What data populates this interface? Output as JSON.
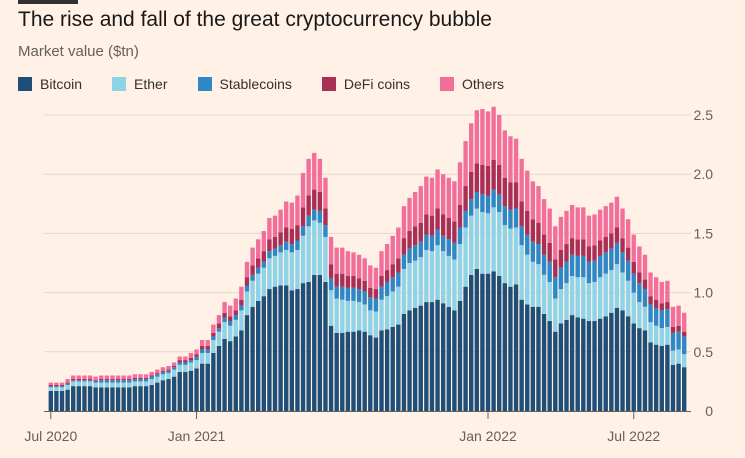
{
  "title": "The rise and fall of the great cryptocurrency bubble",
  "subtitle": "Market value ($tn)",
  "chart_data": {
    "type": "bar",
    "stacked": true,
    "title": "The rise and fall of the great cryptocurrency bubble",
    "ylabel": "Market value ($tn)",
    "ylim": [
      0,
      2.5
    ],
    "yticks": [
      0,
      0.5,
      1.0,
      1.5,
      2.0,
      2.5
    ],
    "ytick_labels": [
      "0",
      "0.5",
      "1.0",
      "1.5",
      "2.0",
      "2.5"
    ],
    "xtick_labels": [
      {
        "label": "Jul 2020",
        "index": 0
      },
      {
        "label": "Jan 2021",
        "index": 26
      },
      {
        "label": "Jan 2022",
        "index": 78
      },
      {
        "label": "Jul 2022",
        "index": 104
      }
    ],
    "legend_position": "top",
    "series": [
      {
        "name": "Bitcoin",
        "color": "#1F4E79",
        "values": [
          0.17,
          0.17,
          0.17,
          0.18,
          0.21,
          0.21,
          0.21,
          0.21,
          0.2,
          0.2,
          0.2,
          0.2,
          0.2,
          0.2,
          0.2,
          0.21,
          0.21,
          0.21,
          0.22,
          0.24,
          0.26,
          0.27,
          0.29,
          0.33,
          0.33,
          0.34,
          0.36,
          0.4,
          0.4,
          0.49,
          0.55,
          0.61,
          0.59,
          0.63,
          0.68,
          0.81,
          0.88,
          0.93,
          0.97,
          1.03,
          1.05,
          1.06,
          1.06,
          1.02,
          1.03,
          1.08,
          1.09,
          1.15,
          1.15,
          1.09,
          0.72,
          0.66,
          0.66,
          0.67,
          0.67,
          0.68,
          0.67,
          0.64,
          0.62,
          0.68,
          0.69,
          0.71,
          0.73,
          0.82,
          0.85,
          0.87,
          0.89,
          0.92,
          0.92,
          0.94,
          0.91,
          0.88,
          0.85,
          0.93,
          1.05,
          1.15,
          1.2,
          1.16,
          1.16,
          1.18,
          1.14,
          1.08,
          1.05,
          1.07,
          0.94,
          0.9,
          0.88,
          0.88,
          0.82,
          0.76,
          0.67,
          0.74,
          0.77,
          0.81,
          0.79,
          0.78,
          0.76,
          0.76,
          0.78,
          0.8,
          0.83,
          0.87,
          0.85,
          0.8,
          0.74,
          0.7,
          0.68,
          0.58,
          0.56,
          0.55,
          0.56,
          0.39,
          0.4,
          0.37
        ]
      },
      {
        "name": "Ether",
        "color": "#8FD3E8",
        "values": [
          0.03,
          0.03,
          0.03,
          0.04,
          0.04,
          0.04,
          0.04,
          0.04,
          0.04,
          0.04,
          0.04,
          0.04,
          0.04,
          0.04,
          0.04,
          0.04,
          0.04,
          0.04,
          0.05,
          0.05,
          0.05,
          0.05,
          0.06,
          0.06,
          0.06,
          0.07,
          0.07,
          0.09,
          0.09,
          0.11,
          0.12,
          0.14,
          0.13,
          0.14,
          0.17,
          0.2,
          0.22,
          0.23,
          0.24,
          0.26,
          0.26,
          0.28,
          0.3,
          0.32,
          0.33,
          0.4,
          0.47,
          0.46,
          0.44,
          0.38,
          0.3,
          0.29,
          0.28,
          0.26,
          0.26,
          0.24,
          0.23,
          0.21,
          0.22,
          0.26,
          0.28,
          0.3,
          0.32,
          0.38,
          0.4,
          0.4,
          0.41,
          0.44,
          0.43,
          0.46,
          0.44,
          0.43,
          0.43,
          0.48,
          0.5,
          0.5,
          0.51,
          0.52,
          0.51,
          0.54,
          0.54,
          0.49,
          0.49,
          0.48,
          0.46,
          0.42,
          0.38,
          0.36,
          0.33,
          0.33,
          0.28,
          0.29,
          0.31,
          0.33,
          0.34,
          0.35,
          0.32,
          0.33,
          0.35,
          0.36,
          0.36,
          0.37,
          0.32,
          0.3,
          0.26,
          0.22,
          0.2,
          0.17,
          0.16,
          0.15,
          0.15,
          0.12,
          0.12,
          0.11
        ]
      },
      {
        "name": "Stablecoins",
        "color": "#2E87C6",
        "values": [
          0.01,
          0.01,
          0.01,
          0.01,
          0.01,
          0.01,
          0.01,
          0.01,
          0.01,
          0.02,
          0.02,
          0.02,
          0.02,
          0.02,
          0.02,
          0.02,
          0.02,
          0.02,
          0.02,
          0.02,
          0.02,
          0.02,
          0.02,
          0.02,
          0.02,
          0.02,
          0.03,
          0.03,
          0.03,
          0.03,
          0.03,
          0.04,
          0.04,
          0.04,
          0.04,
          0.05,
          0.05,
          0.05,
          0.05,
          0.06,
          0.06,
          0.06,
          0.07,
          0.07,
          0.08,
          0.08,
          0.09,
          0.09,
          0.1,
          0.1,
          0.1,
          0.1,
          0.11,
          0.11,
          0.11,
          0.11,
          0.11,
          0.11,
          0.11,
          0.11,
          0.12,
          0.12,
          0.12,
          0.12,
          0.12,
          0.13,
          0.13,
          0.13,
          0.13,
          0.13,
          0.13,
          0.14,
          0.14,
          0.14,
          0.14,
          0.14,
          0.14,
          0.15,
          0.15,
          0.15,
          0.15,
          0.16,
          0.16,
          0.16,
          0.16,
          0.17,
          0.17,
          0.17,
          0.17,
          0.17,
          0.18,
          0.18,
          0.18,
          0.18,
          0.18,
          0.18,
          0.18,
          0.18,
          0.18,
          0.18,
          0.18,
          0.18,
          0.17,
          0.17,
          0.16,
          0.16,
          0.15,
          0.15,
          0.15,
          0.15,
          0.15,
          0.15,
          0.15,
          0.15
        ]
      },
      {
        "name": "DeFi coins",
        "color": "#A92F57",
        "values": [
          0.01,
          0.01,
          0.01,
          0.01,
          0.01,
          0.01,
          0.01,
          0.01,
          0.01,
          0.01,
          0.01,
          0.01,
          0.01,
          0.01,
          0.01,
          0.01,
          0.01,
          0.01,
          0.01,
          0.01,
          0.01,
          0.01,
          0.01,
          0.02,
          0.02,
          0.02,
          0.02,
          0.03,
          0.03,
          0.03,
          0.04,
          0.04,
          0.04,
          0.04,
          0.05,
          0.07,
          0.08,
          0.08,
          0.09,
          0.1,
          0.1,
          0.11,
          0.12,
          0.13,
          0.13,
          0.16,
          0.17,
          0.17,
          0.16,
          0.14,
          0.12,
          0.11,
          0.11,
          0.1,
          0.1,
          0.09,
          0.09,
          0.08,
          0.08,
          0.09,
          0.1,
          0.11,
          0.12,
          0.14,
          0.15,
          0.16,
          0.16,
          0.17,
          0.17,
          0.18,
          0.18,
          0.18,
          0.18,
          0.19,
          0.21,
          0.23,
          0.24,
          0.25,
          0.25,
          0.25,
          0.25,
          0.24,
          0.23,
          0.22,
          0.21,
          0.2,
          0.19,
          0.18,
          0.17,
          0.16,
          0.15,
          0.15,
          0.15,
          0.14,
          0.14,
          0.14,
          0.13,
          0.13,
          0.13,
          0.13,
          0.13,
          0.13,
          0.12,
          0.11,
          0.1,
          0.09,
          0.08,
          0.07,
          0.07,
          0.06,
          0.06,
          0.05,
          0.05,
          0.04
        ]
      },
      {
        "name": "Others",
        "color": "#F36F9B",
        "values": [
          0.02,
          0.02,
          0.02,
          0.03,
          0.03,
          0.03,
          0.03,
          0.03,
          0.03,
          0.03,
          0.03,
          0.03,
          0.03,
          0.03,
          0.03,
          0.03,
          0.03,
          0.03,
          0.03,
          0.03,
          0.03,
          0.03,
          0.03,
          0.03,
          0.03,
          0.04,
          0.04,
          0.05,
          0.05,
          0.07,
          0.07,
          0.09,
          0.09,
          0.1,
          0.11,
          0.13,
          0.15,
          0.16,
          0.17,
          0.18,
          0.18,
          0.19,
          0.22,
          0.22,
          0.25,
          0.29,
          0.31,
          0.31,
          0.28,
          0.26,
          0.23,
          0.22,
          0.22,
          0.21,
          0.2,
          0.2,
          0.19,
          0.19,
          0.18,
          0.21,
          0.22,
          0.24,
          0.26,
          0.27,
          0.28,
          0.29,
          0.31,
          0.32,
          0.32,
          0.33,
          0.34,
          0.34,
          0.34,
          0.36,
          0.38,
          0.41,
          0.45,
          0.47,
          0.46,
          0.45,
          0.42,
          0.4,
          0.39,
          0.37,
          0.36,
          0.34,
          0.32,
          0.31,
          0.3,
          0.29,
          0.28,
          0.28,
          0.28,
          0.28,
          0.27,
          0.27,
          0.26,
          0.26,
          0.26,
          0.26,
          0.26,
          0.26,
          0.25,
          0.24,
          0.23,
          0.22,
          0.21,
          0.2,
          0.19,
          0.18,
          0.18,
          0.17,
          0.17,
          0.16
        ]
      }
    ]
  }
}
